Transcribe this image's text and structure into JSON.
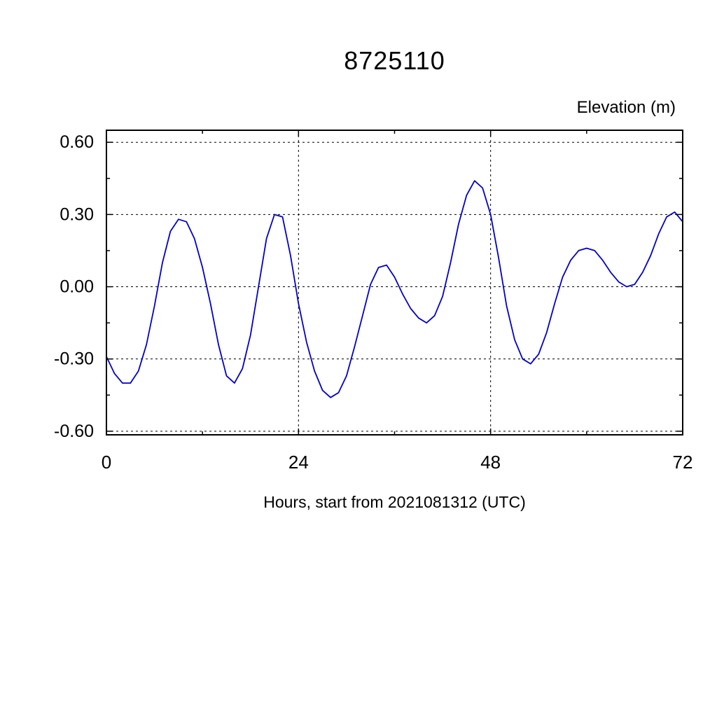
{
  "chart_data": {
    "type": "line",
    "title": "8725110",
    "ylabel": "Elevation (m)",
    "xlabel": "Hours, start from 2021081312 (UTC)",
    "xlim": [
      0,
      72
    ],
    "ylim": [
      -0.615,
      0.65
    ],
    "xticks": [
      0,
      24,
      48,
      72
    ],
    "xtick_labels": [
      "0",
      "24",
      "48",
      "72"
    ],
    "x_minor_ticks": [
      12,
      36,
      60
    ],
    "yticks": [
      0.6,
      0.3,
      0.0,
      -0.3,
      -0.6
    ],
    "ytick_labels": [
      "0.60",
      "0.30",
      "0.00",
      "-0.30",
      "-0.60"
    ],
    "y_minor_ticks": [
      0.45,
      0.15,
      -0.15,
      -0.45
    ],
    "grid": {
      "x_values": [
        24,
        48
      ],
      "y_values": [
        0.6,
        0.3,
        0.0,
        -0.3,
        -0.6
      ],
      "style": "dashed",
      "color": "#000000"
    },
    "line_color": "#0000cc",
    "frame_color": "#000000",
    "x_step_hours": 1,
    "x": [
      0,
      1,
      2,
      3,
      4,
      5,
      6,
      7,
      8,
      9,
      10,
      11,
      12,
      13,
      14,
      15,
      16,
      17,
      18,
      19,
      20,
      21,
      22,
      23,
      24,
      25,
      26,
      27,
      28,
      29,
      30,
      31,
      32,
      33,
      34,
      35,
      36,
      37,
      38,
      39,
      40,
      41,
      42,
      43,
      44,
      45,
      46,
      47,
      48,
      49,
      50,
      51,
      52,
      53,
      54,
      55,
      56,
      57,
      58,
      59,
      60,
      61,
      62,
      63,
      64,
      65,
      66,
      67,
      68,
      69,
      70,
      71,
      72
    ],
    "series": [
      {
        "name": "elevation",
        "values": [
          -0.29,
          -0.36,
          -0.4,
          -0.4,
          -0.35,
          -0.24,
          -0.08,
          0.1,
          0.23,
          0.28,
          0.27,
          0.2,
          0.08,
          -0.07,
          -0.24,
          -0.37,
          -0.4,
          -0.34,
          -0.2,
          0.0,
          0.2,
          0.3,
          0.29,
          0.13,
          -0.07,
          -0.23,
          -0.35,
          -0.43,
          -0.46,
          -0.44,
          -0.37,
          -0.25,
          -0.12,
          0.01,
          0.08,
          0.09,
          0.04,
          -0.03,
          -0.09,
          -0.13,
          -0.15,
          -0.12,
          -0.04,
          0.1,
          0.26,
          0.38,
          0.44,
          0.41,
          0.3,
          0.12,
          -0.08,
          -0.22,
          -0.3,
          -0.32,
          -0.28,
          -0.19,
          -0.07,
          0.04,
          0.11,
          0.15,
          0.16,
          0.15,
          0.11,
          0.06,
          0.02,
          0.0,
          0.01,
          0.06,
          0.13,
          0.22,
          0.29,
          0.31,
          0.27
        ]
      }
    ]
  },
  "layout_note": "Tide elevation time series plot"
}
